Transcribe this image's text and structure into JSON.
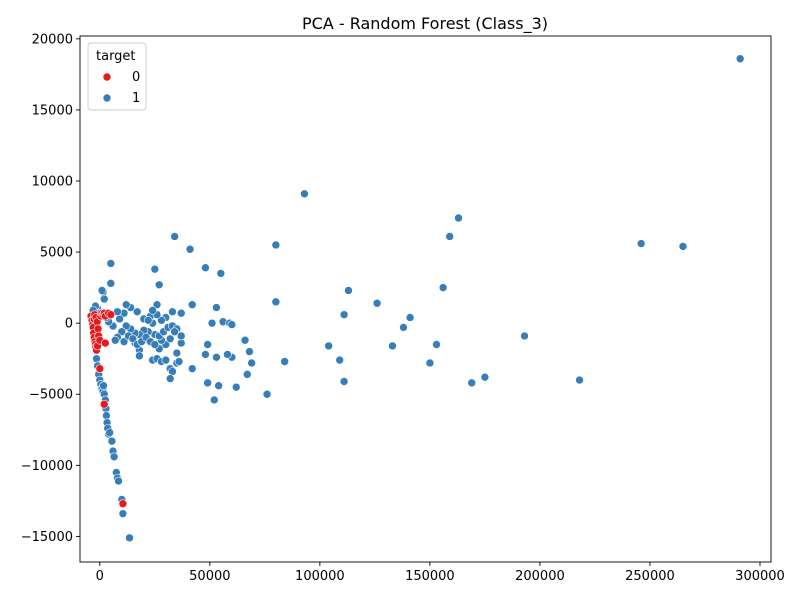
{
  "chart_data": {
    "type": "scatter",
    "title": "PCA - Random Forest (Class_3)",
    "xlabel": "",
    "ylabel": "",
    "xlim": [
      -9000,
      305000
    ],
    "ylim": [
      -16800,
      20200
    ],
    "xticks": [
      0,
      50000,
      100000,
      150000,
      200000,
      250000,
      300000
    ],
    "xtick_labels": [
      "0",
      "50000",
      "100000",
      "150000",
      "200000",
      "250000",
      "300000"
    ],
    "yticks": [
      -15000,
      -10000,
      -5000,
      0,
      5000,
      10000,
      15000,
      20000
    ],
    "ytick_labels": [
      "−15000",
      "−10000",
      "−5000",
      "0",
      "5000",
      "10000",
      "15000",
      "20000"
    ],
    "grid": false,
    "legend": {
      "title": "target",
      "placement": "top-left",
      "entries": [
        "0",
        "1"
      ]
    },
    "colors": {
      "0": "#e41a1c",
      "1": "#377eb8"
    },
    "series": [
      {
        "name": "0",
        "points": [
          [
            -4000,
            500
          ],
          [
            -3500,
            200
          ],
          [
            -3200,
            -100
          ],
          [
            -3000,
            -300
          ],
          [
            -2800,
            -700
          ],
          [
            -2500,
            -1000
          ],
          [
            -2200,
            -1300
          ],
          [
            -2000,
            -1500
          ],
          [
            -1800,
            -1700
          ],
          [
            -1500,
            -1900
          ],
          [
            -1000,
            -1600
          ],
          [
            -2600,
            300
          ],
          [
            -2300,
            600
          ],
          [
            -1700,
            400
          ],
          [
            -1200,
            100
          ],
          [
            -800,
            -400
          ],
          [
            -500,
            -900
          ],
          [
            0,
            -1200
          ],
          [
            500,
            500
          ],
          [
            1000,
            700
          ],
          [
            1500,
            600
          ],
          [
            2000,
            700
          ],
          [
            2500,
            500
          ],
          [
            4000,
            700
          ],
          [
            5000,
            600
          ],
          [
            2500,
            -1400
          ],
          [
            0,
            -3200
          ],
          [
            2000,
            -5700
          ],
          [
            10500,
            -12700
          ]
        ]
      },
      {
        "name": "1",
        "points": [
          [
            291000,
            18600
          ],
          [
            93000,
            9100
          ],
          [
            163000,
            7400
          ],
          [
            246000,
            5600
          ],
          [
            265000,
            5400
          ],
          [
            159000,
            6100
          ],
          [
            80000,
            5500
          ],
          [
            34000,
            6100
          ],
          [
            41000,
            5200
          ],
          [
            5000,
            4200
          ],
          [
            48000,
            3900
          ],
          [
            25000,
            3800
          ],
          [
            55000,
            3500
          ],
          [
            5000,
            2800
          ],
          [
            27000,
            2700
          ],
          [
            156000,
            2500
          ],
          [
            113000,
            2300
          ],
          [
            80000,
            1500
          ],
          [
            126000,
            1400
          ],
          [
            42000,
            1300
          ],
          [
            53000,
            1100
          ],
          [
            111000,
            600
          ],
          [
            141000,
            400
          ],
          [
            138000,
            -300
          ],
          [
            193000,
            -900
          ],
          [
            104000,
            -1600
          ],
          [
            133000,
            -1600
          ],
          [
            153000,
            -1500
          ],
          [
            109000,
            -2600
          ],
          [
            150000,
            -2800
          ],
          [
            84000,
            -2700
          ],
          [
            175000,
            -3800
          ],
          [
            169000,
            -4200
          ],
          [
            218000,
            -4000
          ],
          [
            111000,
            -4100
          ],
          [
            76000,
            -5000
          ],
          [
            49000,
            -4200
          ],
          [
            52000,
            -5400
          ],
          [
            62000,
            -4500
          ],
          [
            54000,
            -4400
          ],
          [
            67000,
            -3600
          ],
          [
            69000,
            -2800
          ],
          [
            60000,
            -2400
          ],
          [
            58000,
            -2200
          ],
          [
            68000,
            -2000
          ],
          [
            66000,
            -1200
          ],
          [
            49000,
            -1500
          ],
          [
            48000,
            -2200
          ],
          [
            53000,
            -2400
          ],
          [
            42000,
            -3200
          ],
          [
            56000,
            100
          ],
          [
            59000,
            0
          ],
          [
            60000,
            -100
          ],
          [
            51000,
            0
          ],
          [
            37000,
            700
          ],
          [
            33000,
            800
          ],
          [
            26000,
            1300
          ],
          [
            23000,
            500
          ],
          [
            20000,
            300
          ],
          [
            17000,
            800
          ],
          [
            14000,
            1100
          ],
          [
            12000,
            1300
          ],
          [
            11000,
            700
          ],
          [
            9000,
            300
          ],
          [
            8000,
            800
          ],
          [
            6000,
            -200
          ],
          [
            4000,
            100
          ],
          [
            3000,
            400
          ],
          [
            2000,
            1700
          ],
          [
            1500,
            2200
          ],
          [
            1000,
            2300
          ],
          [
            -1000,
            1000
          ],
          [
            -2000,
            1200
          ],
          [
            -3000,
            900
          ],
          [
            0,
            700
          ],
          [
            16000,
            -1400
          ],
          [
            18000,
            -1900
          ],
          [
            18000,
            -2300
          ],
          [
            22000,
            -1200
          ],
          [
            24000,
            -2600
          ],
          [
            26000,
            -2500
          ],
          [
            27000,
            -1800
          ],
          [
            28000,
            -2700
          ],
          [
            30000,
            -2600
          ],
          [
            32000,
            -3200
          ],
          [
            33000,
            -3400
          ],
          [
            32000,
            -3900
          ],
          [
            35000,
            -2800
          ],
          [
            36000,
            -2700
          ],
          [
            37000,
            -1400
          ],
          [
            35000,
            -2100
          ],
          [
            30000,
            -1500
          ],
          [
            28000,
            -1200
          ],
          [
            25000,
            -800
          ],
          [
            24000,
            0
          ],
          [
            22000,
            -600
          ],
          [
            20000,
            -500
          ],
          [
            18000,
            -800
          ],
          [
            16000,
            -700
          ],
          [
            14000,
            -400
          ],
          [
            12000,
            -200
          ],
          [
            10000,
            -600
          ],
          [
            8000,
            -1000
          ],
          [
            7000,
            -1200
          ],
          [
            11000,
            -1300
          ],
          [
            13000,
            -900
          ],
          [
            15000,
            -1100
          ],
          [
            17000,
            -1500
          ],
          [
            19000,
            -1300
          ],
          [
            21000,
            -1000
          ],
          [
            23000,
            -1300
          ],
          [
            25000,
            -1500
          ],
          [
            27000,
            -900
          ],
          [
            29000,
            -600
          ],
          [
            31000,
            -300
          ],
          [
            33000,
            -200
          ],
          [
            35000,
            -400
          ],
          [
            37000,
            -900
          ],
          [
            34000,
            -600
          ],
          [
            32000,
            -1100
          ],
          [
            30000,
            400
          ],
          [
            28000,
            200
          ],
          [
            26000,
            600
          ],
          [
            24000,
            900
          ],
          [
            22000,
            200
          ],
          [
            -1500,
            -2500
          ],
          [
            -1000,
            -3000
          ],
          [
            -500,
            -3600
          ],
          [
            0,
            -4000
          ],
          [
            500,
            -4300
          ],
          [
            1000,
            -4600
          ],
          [
            1500,
            -4800
          ],
          [
            1700,
            -4400
          ],
          [
            2000,
            -5000
          ],
          [
            2500,
            -5400
          ],
          [
            2800,
            -6000
          ],
          [
            3000,
            -6500
          ],
          [
            3300,
            -7000
          ],
          [
            3600,
            -7400
          ],
          [
            4000,
            -7800
          ],
          [
            4500,
            -7700
          ],
          [
            5500,
            -8300
          ],
          [
            6000,
            -9000
          ],
          [
            6500,
            -9400
          ],
          [
            7500,
            -10500
          ],
          [
            8000,
            -10900
          ],
          [
            8500,
            -11100
          ],
          [
            10000,
            -12400
          ],
          [
            10500,
            -13400
          ],
          [
            13500,
            -15100
          ]
        ]
      }
    ]
  }
}
